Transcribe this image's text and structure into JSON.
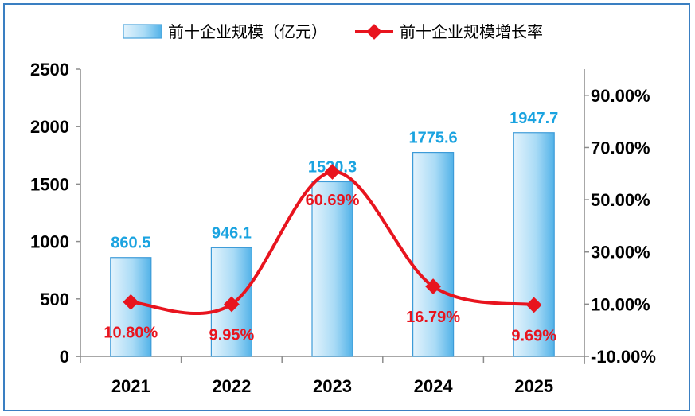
{
  "chart_data": {
    "type": "bar",
    "categories": [
      "2021",
      "2022",
      "2023",
      "2024",
      "2025"
    ],
    "series": [
      {
        "name": "前十企业规模（亿元）",
        "type": "bar",
        "axis": "left",
        "values": [
          860.5,
          946.1,
          1520.3,
          1775.6,
          1947.7
        ],
        "labels": [
          "860.5",
          "946.1",
          "1520.3",
          "1775.6",
          "1947.7"
        ],
        "color": "#5bb8ea"
      },
      {
        "name": "前十企业规模增长率",
        "type": "line",
        "axis": "right",
        "values": [
          10.8,
          9.95,
          60.69,
          16.79,
          9.69
        ],
        "labels": [
          "10.80%",
          "9.95%",
          "60.69%",
          "16.79%",
          "9.69%"
        ],
        "color": "#e8141e"
      }
    ],
    "y_left": {
      "ylim": [
        0,
        2500
      ],
      "ticks": [
        0,
        500,
        1000,
        1500,
        2000,
        2500
      ],
      "tick_labels": [
        "0",
        "500",
        "1000",
        "1500",
        "2000",
        "2500"
      ]
    },
    "y_right": {
      "ylim": [
        -10,
        100
      ],
      "ticks": [
        -10,
        10,
        30,
        50,
        70,
        90
      ],
      "tick_labels": [
        "-10.00%",
        "10.00%",
        "30.00%",
        "50.00%",
        "70.00%",
        "90.00%"
      ]
    },
    "grid": false,
    "legend": "top"
  }
}
